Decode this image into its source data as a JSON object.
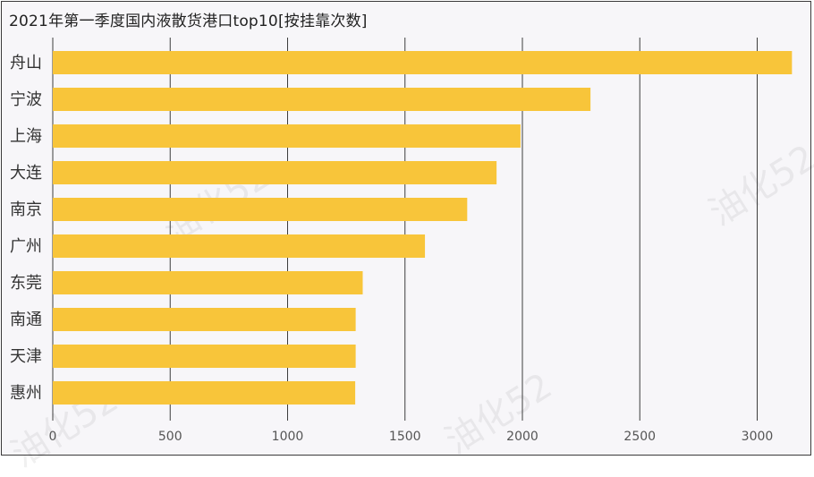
{
  "title": "2021年第一季度国内液散货港口top10[按挂靠次数]",
  "watermark": "油化52",
  "chart_data": {
    "type": "bar",
    "orientation": "horizontal",
    "categories": [
      "舟山",
      "宁波",
      "上海",
      "大连",
      "南京",
      "广州",
      "东莞",
      "南通",
      "天津",
      "惠州"
    ],
    "values": [
      3148,
      2290,
      1992,
      1890,
      1765,
      1585,
      1320,
      1290,
      1290,
      1288
    ],
    "xlim": [
      0,
      3250
    ],
    "xticks": [
      0,
      500,
      1000,
      1500,
      2000,
      2500,
      3000
    ],
    "grid": true,
    "bar_color": "#f8c53a",
    "grid_color": "#3d3d3d",
    "xlabel": "",
    "ylabel": ""
  }
}
